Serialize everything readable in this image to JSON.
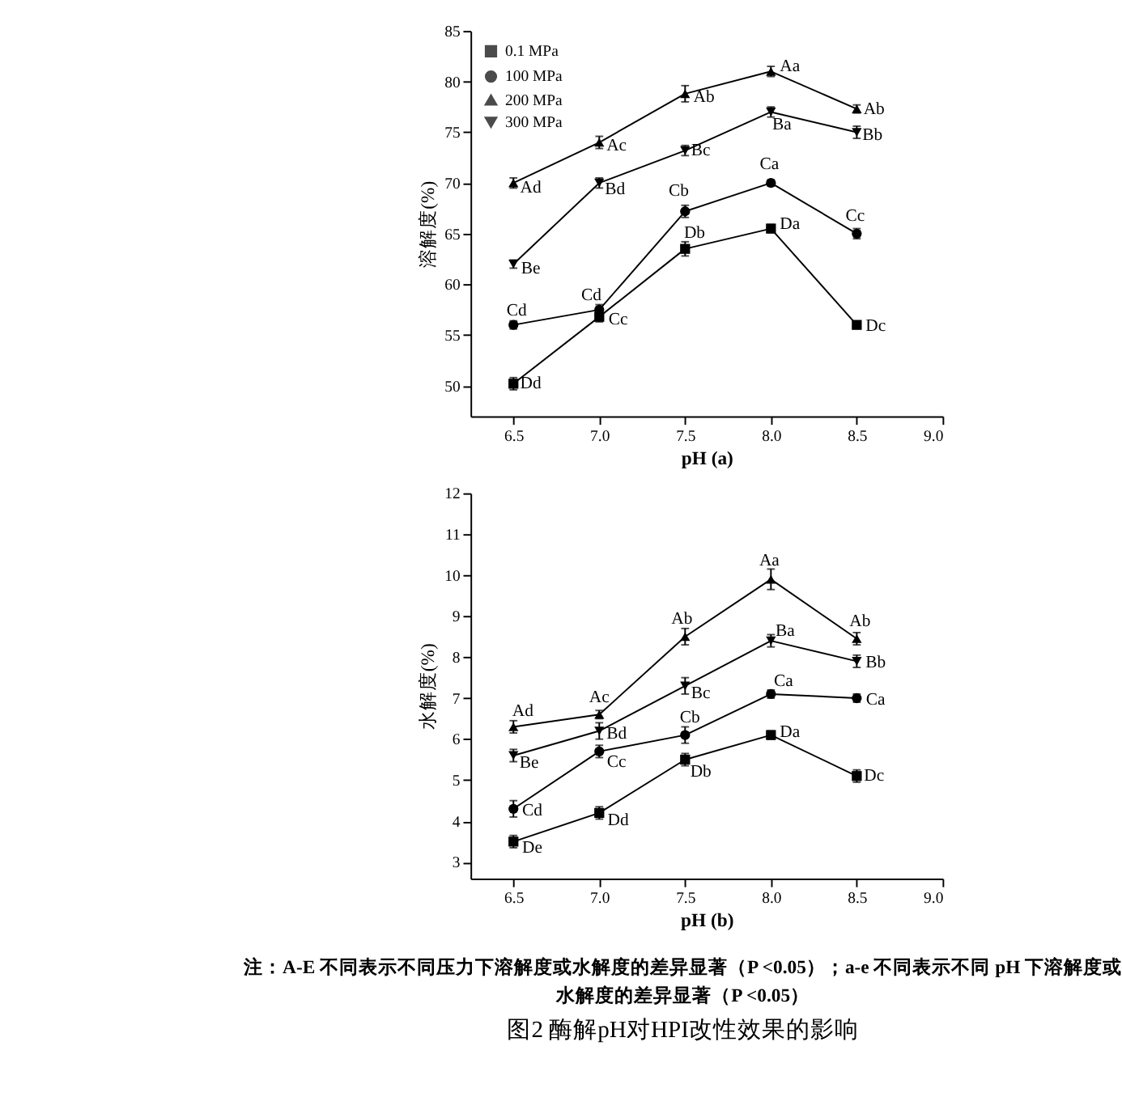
{
  "chart_data": [
    {
      "type": "line",
      "xlabel": "pH (a)",
      "ylabel": "溶解度(%)",
      "x": [
        6.5,
        7.0,
        7.5,
        8.0,
        8.5
      ],
      "xlim": [
        6.25,
        9.0
      ],
      "xticks": [
        {
          "value": 6.5,
          "label": "6.5"
        },
        {
          "value": 7.0,
          "label": "7.0"
        },
        {
          "value": 7.5,
          "label": "7.5"
        },
        {
          "value": 8.0,
          "label": "8.0"
        },
        {
          "value": 8.5,
          "label": "8.5"
        },
        {
          "value": 9.0,
          "label": "9.0"
        }
      ],
      "ylim": [
        47,
        85
      ],
      "yticks": [
        50,
        55,
        60,
        65,
        70,
        75,
        80,
        85
      ],
      "grid": false,
      "legend": "top left",
      "series": [
        {
          "name": "0.1 MPa",
          "color": "#000000",
          "marker": "square",
          "values": [
            50.2,
            56.8,
            63.5,
            65.5,
            56.0
          ],
          "errors": [
            0.6,
            0.5,
            0.7,
            0.4,
            0.3
          ]
        },
        {
          "name": "100 MPa",
          "color": "#000000",
          "marker": "circle",
          "values": [
            56.0,
            57.5,
            67.2,
            70.0,
            65.0
          ],
          "errors": [
            0.4,
            0.5,
            0.6,
            0.3,
            0.5
          ]
        },
        {
          "name": "200 MPa",
          "color": "#000000",
          "marker": "triangle",
          "values": [
            70.0,
            74.0,
            78.8,
            81.0,
            77.3
          ],
          "errors": [
            0.5,
            0.6,
            0.8,
            0.5,
            0.4
          ]
        },
        {
          "name": "300 MPa",
          "color": "#000000",
          "marker": "triangle-down",
          "values": [
            62.0,
            70.0,
            73.2,
            77.0,
            75.0
          ],
          "errors": [
            0.4,
            0.5,
            0.5,
            0.5,
            0.6
          ]
        }
      ],
      "annotations": [
        {
          "text": "Dd",
          "x": 6.5,
          "y": 50.2
        },
        {
          "text": "Cd",
          "x": 6.5,
          "y": 56.0
        },
        {
          "text": "Ad",
          "x": 6.5,
          "y": 70.0
        },
        {
          "text": "Be",
          "x": 6.5,
          "y": 62.0
        },
        {
          "text": "Cd",
          "x": 7.0,
          "y": 57.5
        },
        {
          "text": "Cc",
          "x": 7.0,
          "y": 56.8
        },
        {
          "text": "Bd",
          "x": 7.0,
          "y": 70.0
        },
        {
          "text": "Ac",
          "x": 7.0,
          "y": 74.0
        },
        {
          "text": "Cb",
          "x": 7.5,
          "y": 67.2
        },
        {
          "text": "Db",
          "x": 7.5,
          "y": 63.5
        },
        {
          "text": "Bc",
          "x": 7.5,
          "y": 73.2
        },
        {
          "text": "Ab",
          "x": 7.5,
          "y": 78.8
        },
        {
          "text": "Ca",
          "x": 8.0,
          "y": 70.0
        },
        {
          "text": "Da",
          "x": 8.0,
          "y": 65.5
        },
        {
          "text": "Ba",
          "x": 8.0,
          "y": 77.0
        },
        {
          "text": "Aa",
          "x": 8.0,
          "y": 81.0
        },
        {
          "text": "Cc",
          "x": 8.5,
          "y": 65.0
        },
        {
          "text": "Dc",
          "x": 8.5,
          "y": 56.0
        },
        {
          "text": "Bb",
          "x": 8.5,
          "y": 75.0
        },
        {
          "text": "Ab",
          "x": 8.5,
          "y": 77.3
        }
      ]
    },
    {
      "type": "line",
      "xlabel": "pH (b)",
      "ylabel": "水解度(%)",
      "title": "图2 酶解pH对HPI改性效果的影响",
      "x": [
        6.5,
        7.0,
        7.5,
        8.0,
        8.5
      ],
      "xlim": [
        6.25,
        9.0
      ],
      "xticks": [
        {
          "value": 6.5,
          "label": "6.5"
        },
        {
          "value": 7.0,
          "label": "7.0"
        },
        {
          "value": 7.5,
          "label": "7.5"
        },
        {
          "value": 8.0,
          "label": "8.0"
        },
        {
          "value": 8.5,
          "label": "8.5"
        },
        {
          "value": 9.0,
          "label": "9.0"
        }
      ],
      "ylim": [
        2.6,
        12
      ],
      "yticks": [
        3,
        4,
        5,
        6,
        7,
        8,
        9,
        10,
        11,
        12
      ],
      "grid": false,
      "legend": "top left",
      "series": [
        {
          "name": "0.1 MPa",
          "color": "#000000",
          "marker": "square",
          "values": [
            3.5,
            4.2,
            5.5,
            6.1,
            5.1
          ],
          "errors": [
            0.15,
            0.15,
            0.15,
            0.1,
            0.15
          ]
        },
        {
          "name": "100 MPa",
          "color": "#000000",
          "marker": "circle",
          "values": [
            4.3,
            5.7,
            6.1,
            7.1,
            7.0
          ],
          "errors": [
            0.2,
            0.15,
            0.2,
            0.1,
            0.1
          ]
        },
        {
          "name": "200 MPa",
          "color": "#000000",
          "marker": "triangle",
          "values": [
            6.3,
            6.6,
            8.5,
            9.9,
            8.45
          ],
          "errors": [
            0.15,
            0.1,
            0.2,
            0.25,
            0.15
          ]
        },
        {
          "name": "300 MPa",
          "color": "#000000",
          "marker": "triangle-down",
          "values": [
            5.6,
            6.2,
            7.3,
            8.4,
            7.9
          ],
          "errors": [
            0.15,
            0.2,
            0.2,
            0.15,
            0.15
          ]
        }
      ],
      "annotations": [
        {
          "text": "De",
          "x": 6.5,
          "y": 3.5
        },
        {
          "text": "Cd",
          "x": 6.5,
          "y": 4.3
        },
        {
          "text": "Be",
          "x": 6.5,
          "y": 5.6
        },
        {
          "text": "Ad",
          "x": 6.5,
          "y": 6.3
        },
        {
          "text": "Dd",
          "x": 7.0,
          "y": 4.2
        },
        {
          "text": "Cc",
          "x": 7.0,
          "y": 5.7
        },
        {
          "text": "Bd",
          "x": 7.0,
          "y": 6.2
        },
        {
          "text": "Ac",
          "x": 7.0,
          "y": 6.6
        },
        {
          "text": "Db",
          "x": 7.5,
          "y": 5.5
        },
        {
          "text": "Cb",
          "x": 7.5,
          "y": 6.1
        },
        {
          "text": "Bc",
          "x": 7.5,
          "y": 7.3
        },
        {
          "text": "Ab",
          "x": 7.5,
          "y": 8.5
        },
        {
          "text": "Da",
          "x": 8.0,
          "y": 6.1
        },
        {
          "text": "Ca",
          "x": 8.0,
          "y": 7.1
        },
        {
          "text": "Ba",
          "x": 8.0,
          "y": 8.4
        },
        {
          "text": "Aa",
          "x": 8.0,
          "y": 9.9
        },
        {
          "text": "Dc",
          "x": 8.5,
          "y": 5.1
        },
        {
          "text": "Ca",
          "x": 8.5,
          "y": 7.0
        },
        {
          "text": "Bb",
          "x": 8.5,
          "y": 7.9
        },
        {
          "text": "Ab",
          "x": 8.5,
          "y": 8.45
        },
        "注：A-E 不同表示不同压力下溶解度或水解度的差异显著（P <0.05）；a-e 不同表示不同 pH 下溶解度或水解度的差异显著（P <0.05）"
      ]
    }
  ]
}
